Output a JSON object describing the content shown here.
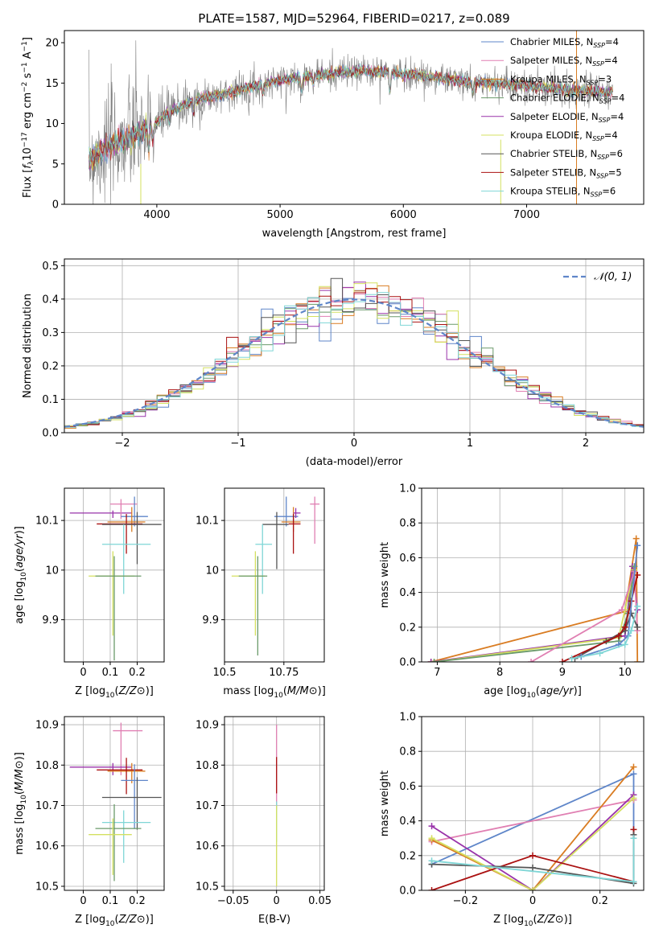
{
  "figure_title": "PLATE=1587, MJD=52964, FIBERID=0217, z=0.089",
  "colors": {
    "chabrier_miles": "#5f86c9",
    "salpeter_miles": "#e07fb2",
    "kroupa_miles": "#d97c22",
    "chabrier_elodie": "#6a9a6a",
    "salpeter_elodie": "#9933aa",
    "kroupa_elodie": "#d4e060",
    "chabrier_stelib": "#555555",
    "salpeter_stelib": "#aa1111",
    "kroupa_stelib": "#7fd6d6",
    "data": "#808080",
    "gauss": "#5f86c9"
  },
  "chart_data": [
    {
      "type": "line",
      "id": "spectrum",
      "title": "PLATE=1587, MJD=52964, FIBERID=0217, z=0.089",
      "xlabel": "wavelength [Angstrom, rest frame]",
      "ylabel": "Flux [fλ10⁻¹⁷ erg cm⁻² s⁻¹ A⁻¹]",
      "xlim": [
        3250,
        7950
      ],
      "ylim": [
        0,
        21.5
      ],
      "xticks": [
        4000,
        5000,
        6000,
        7000
      ],
      "yticks": [
        0,
        5,
        10,
        15,
        20
      ],
      "legend_position": "upper-right",
      "legend": [
        {
          "label": "Chabrier MILES, N",
          "sub": "SSP",
          "tail": "=4",
          "color_key": "chabrier_miles"
        },
        {
          "label": "Salpeter MILES, N",
          "sub": "SSP",
          "tail": "=4",
          "color_key": "salpeter_miles"
        },
        {
          "label": "Kroupa MILES, N",
          "sub": "SSP",
          "tail": "=3",
          "color_key": "kroupa_miles"
        },
        {
          "label": "Chabrier ELODIE, N",
          "sub": "SSP",
          "tail": "=4",
          "color_key": "chabrier_elodie"
        },
        {
          "label": "Salpeter ELODIE, N",
          "sub": "SSP",
          "tail": "=4",
          "color_key": "salpeter_elodie"
        },
        {
          "label": "Kroupa ELODIE, N",
          "sub": "SSP",
          "tail": "=4",
          "color_key": "kroupa_elodie"
        },
        {
          "label": "Chabrier STELIB, N",
          "sub": "SSP",
          "tail": "=6",
          "color_key": "chabrier_stelib"
        },
        {
          "label": "Salpeter STELIB, N",
          "sub": "SSP",
          "tail": "=5",
          "color_key": "salpeter_stelib"
        },
        {
          "label": "Kroupa STELIB, N",
          "sub": "SSP",
          "tail": "=6",
          "color_key": "kroupa_stelib"
        }
      ],
      "continuum": {
        "x": [
          3450,
          3600,
          3800,
          3950,
          4100,
          4300,
          4500,
          4700,
          4900,
          5100,
          5300,
          5500,
          5700,
          5900,
          6100,
          6300,
          6500,
          6700,
          6900,
          7100,
          7300,
          7500,
          7700
        ],
        "y": [
          5.5,
          7.0,
          8.5,
          9.5,
          11.5,
          12.8,
          13.5,
          14.3,
          15.0,
          15.6,
          16.0,
          16.3,
          16.5,
          16.3,
          16.0,
          15.6,
          15.2,
          15.0,
          14.8,
          14.5,
          14.2,
          14.0,
          13.8
        ]
      },
      "data_range": [
        3450,
        7700
      ],
      "vertical_lines": [
        {
          "x": 3870,
          "y0": 0,
          "y1": 5,
          "color_key": "kroupa_elodie"
        },
        {
          "x": 6790,
          "y0": 0,
          "y1": 8,
          "color_key": "kroupa_elodie"
        },
        {
          "x": 7405,
          "y0": 0,
          "y1": 21.5,
          "color_key": "kroupa_miles"
        }
      ]
    },
    {
      "type": "histogram",
      "id": "residuals",
      "xlabel": "(data-model)/error",
      "ylabel": "Normed distribution",
      "xlim": [
        -2.5,
        2.5
      ],
      "ylim": [
        0,
        0.52
      ],
      "xticks": [
        -2,
        -1,
        0,
        1,
        2
      ],
      "yticks": [
        0.0,
        0.1,
        0.2,
        0.3,
        0.4,
        0.5
      ],
      "bin_width": 0.1,
      "legend_position": "upper-right",
      "legend": [
        {
          "label": "𝒩(0, 1)",
          "color_key": "gauss",
          "style": "dashed"
        }
      ]
    },
    {
      "type": "errorbar",
      "id": "age_vs_Z",
      "xlabel": "Z [log10(Z/Z⊙)]",
      "ylabel": "age  [log10(age/yr)]",
      "xlim": [
        -0.07,
        0.3
      ],
      "ylim": [
        9.815,
        10.165
      ],
      "xticks": [
        0.0,
        0.1,
        0.2
      ],
      "yticks": [
        9.9,
        10.0,
        10.1
      ],
      "points": [
        {
          "color_key": "salpeter_elodie",
          "x": 0.11,
          "xerr": [
            0.16,
            0.07
          ],
          "y": 10.115,
          "yerr": [
            0.01,
            0.005
          ]
        },
        {
          "color_key": "salpeter_miles",
          "x": 0.14,
          "xerr": [
            0.04,
            0.06
          ],
          "y": 10.133,
          "yerr": [
            0.03,
            0.01
          ]
        },
        {
          "color_key": "chabrier_miles",
          "x": 0.19,
          "xerr": [
            0.05,
            0.05
          ],
          "y": 10.108,
          "yerr": [
            0.02,
            0.04
          ]
        },
        {
          "color_key": "kroupa_miles",
          "x": 0.18,
          "xerr": [
            0.09,
            0.05
          ],
          "y": 10.097,
          "yerr": [
            0.02,
            0.03
          ]
        },
        {
          "color_key": "salpeter_stelib",
          "x": 0.16,
          "xerr": [
            0.11,
            0.06
          ],
          "y": 10.093,
          "yerr": [
            0.06,
            0.02
          ]
        },
        {
          "color_key": "chabrier_stelib",
          "x": 0.2,
          "xerr": [
            0.13,
            0.09
          ],
          "y": 10.092,
          "yerr": [
            0.08,
            0.025
          ]
        },
        {
          "color_key": "kroupa_stelib",
          "x": 0.15,
          "xerr": [
            0.08,
            0.1
          ],
          "y": 10.052,
          "yerr": [
            0.1,
            0.04
          ]
        },
        {
          "color_key": "kroupa_elodie",
          "x": 0.11,
          "xerr": [
            0.09,
            0.08
          ],
          "y": 9.988,
          "yerr": [
            0.12,
            0.05
          ]
        },
        {
          "color_key": "chabrier_elodie",
          "x": 0.115,
          "xerr": [
            0.07,
            0.1
          ],
          "y": 9.988,
          "yerr": [
            0.17,
            0.04
          ]
        }
      ]
    },
    {
      "type": "errorbar",
      "id": "age_vs_mass",
      "xlabel": "mass [log10(M/M⊙)]",
      "ylabel": "",
      "xlim": [
        10.5,
        10.92
      ],
      "ylim": [
        9.815,
        10.165
      ],
      "xticks": [
        10.5,
        10.75
      ],
      "yticks": [
        9.9,
        10.0,
        10.1
      ],
      "points": [
        {
          "color_key": "salpeter_miles",
          "x": 10.88,
          "xerr": [
            0.02,
            0.02
          ],
          "y": 10.133,
          "yerr": [
            0.08,
            0.015
          ]
        },
        {
          "color_key": "chabrier_miles",
          "x": 10.76,
          "xerr": [
            0.05,
            0.05
          ],
          "y": 10.108,
          "yerr": [
            0.02,
            0.04
          ]
        },
        {
          "color_key": "kroupa_miles",
          "x": 10.79,
          "xerr": [
            0.05,
            0.03
          ],
          "y": 10.097,
          "yerr": [
            0.02,
            0.03
          ]
        },
        {
          "color_key": "salpeter_stelib",
          "x": 10.79,
          "xerr": [
            0.02,
            0.03
          ],
          "y": 10.093,
          "yerr": [
            0.06,
            0.02
          ]
        },
        {
          "color_key": "chabrier_stelib",
          "x": 10.72,
          "xerr": [
            0.06,
            0.05
          ],
          "y": 10.092,
          "yerr": [
            0.09,
            0.025
          ]
        },
        {
          "color_key": "salpeter_elodie",
          "x": 10.8,
          "xerr": [
            0.01,
            0.02
          ],
          "y": 10.115,
          "yerr": [
            0.01,
            0.01
          ]
        },
        {
          "color_key": "kroupa_stelib",
          "x": 10.66,
          "xerr": [
            0.03,
            0.04
          ],
          "y": 10.052,
          "yerr": [
            0.1,
            0.04
          ]
        },
        {
          "color_key": "kroupa_elodie",
          "x": 10.63,
          "xerr": [
            0.1,
            0.04
          ],
          "y": 9.988,
          "yerr": [
            0.12,
            0.05
          ]
        },
        {
          "color_key": "chabrier_elodie",
          "x": 10.64,
          "xerr": [
            0.08,
            0.04
          ],
          "y": 9.988,
          "yerr": [
            0.16,
            0.04
          ]
        }
      ]
    },
    {
      "type": "line",
      "id": "weight_vs_age",
      "xlabel": "age  [log10(age/yr)]",
      "ylabel": "mass weight",
      "xlim": [
        6.75,
        10.3
      ],
      "ylim": [
        0,
        1.0
      ],
      "xticks": [
        7,
        8,
        9,
        10
      ],
      "yticks": [
        0.0,
        0.2,
        0.4,
        0.6,
        0.8,
        1.0
      ],
      "series": [
        {
          "color_key": "kroupa_miles",
          "x": [
            6.9,
            10.0,
            10.18,
            10.2
          ],
          "y": [
            0.0,
            0.29,
            0.71,
            0.0
          ]
        },
        {
          "color_key": "salpeter_elodie",
          "x": [
            6.9,
            10.0,
            10.12,
            10.2
          ],
          "y": [
            0.0,
            0.15,
            0.55,
            0.3
          ]
        },
        {
          "color_key": "kroupa_elodie",
          "x": [
            6.95,
            9.9,
            10.0,
            10.15
          ],
          "y": [
            0.0,
            0.14,
            0.3,
            0.53
          ]
        },
        {
          "color_key": "chabrier_elodie",
          "x": [
            6.95,
            9.9,
            10.05,
            10.15
          ],
          "y": [
            0.0,
            0.12,
            0.28,
            0.55
          ]
        },
        {
          "color_key": "salpeter_miles",
          "x": [
            8.5,
            9.95,
            10.15,
            10.2
          ],
          "y": [
            0.0,
            0.3,
            0.52,
            0.18
          ]
        },
        {
          "color_key": "chabrier_stelib",
          "x": [
            9.2,
            9.7,
            10.0,
            10.1,
            10.2
          ],
          "y": [
            0.02,
            0.12,
            0.18,
            0.28,
            0.2
          ]
        },
        {
          "color_key": "salpeter_stelib",
          "x": [
            9.0,
            9.9,
            10.0,
            10.1,
            10.2
          ],
          "y": [
            0.0,
            0.15,
            0.2,
            0.35,
            0.5
          ]
        },
        {
          "color_key": "chabrier_miles",
          "x": [
            9.3,
            9.9,
            10.05,
            10.2
          ],
          "y": [
            0.03,
            0.1,
            0.15,
            0.67
          ]
        },
        {
          "color_key": "kroupa_stelib",
          "x": [
            9.15,
            9.6,
            10.0,
            10.1,
            10.2
          ],
          "y": [
            0.02,
            0.05,
            0.1,
            0.18,
            0.32
          ]
        }
      ]
    },
    {
      "type": "errorbar",
      "id": "mass_vs_Z",
      "xlabel": "Z [log10(Z/Z⊙)]",
      "ylabel": "mass [log10(M/M⊙)]",
      "xlim": [
        -0.07,
        0.3
      ],
      "ylim": [
        10.49,
        10.92
      ],
      "xticks": [
        0.0,
        0.1,
        0.2
      ],
      "yticks": [
        10.5,
        10.6,
        10.7,
        10.8,
        10.9
      ],
      "points": [
        {
          "color_key": "salpeter_miles",
          "x": 0.14,
          "xerr": [
            0.03,
            0.08
          ],
          "y": 10.885,
          "yerr": [
            0.11,
            0.02
          ]
        },
        {
          "color_key": "salpeter_elodie",
          "x": 0.11,
          "xerr": [
            0.16,
            0.07
          ],
          "y": 10.795,
          "yerr": [
            0.02,
            0.01
          ]
        },
        {
          "color_key": "kroupa_miles",
          "x": 0.18,
          "xerr": [
            0.09,
            0.05
          ],
          "y": 10.785,
          "yerr": [
            0.03,
            0.02
          ]
        },
        {
          "color_key": "salpeter_stelib",
          "x": 0.16,
          "xerr": [
            0.11,
            0.06
          ],
          "y": 10.788,
          "yerr": [
            0.06,
            0.03
          ]
        },
        {
          "color_key": "chabrier_miles",
          "x": 0.19,
          "xerr": [
            0.05,
            0.05
          ],
          "y": 10.762,
          "yerr": [
            0.12,
            0.04
          ]
        },
        {
          "color_key": "chabrier_stelib",
          "x": 0.2,
          "xerr": [
            0.13,
            0.09
          ],
          "y": 10.72,
          "yerr": [
            0.08,
            0.05
          ]
        },
        {
          "color_key": "kroupa_stelib",
          "x": 0.15,
          "xerr": [
            0.08,
            0.1
          ],
          "y": 10.658,
          "yerr": [
            0.1,
            0.03
          ]
        },
        {
          "color_key": "chabrier_elodie",
          "x": 0.115,
          "xerr": [
            0.07,
            0.1
          ],
          "y": 10.643,
          "yerr": [
            0.13,
            0.06
          ]
        },
        {
          "color_key": "kroupa_elodie",
          "x": 0.11,
          "xerr": [
            0.09,
            0.07
          ],
          "y": 10.628,
          "yerr": [
            0.1,
            0.04
          ]
        }
      ]
    },
    {
      "type": "errorbar",
      "id": "mass_vs_ebv",
      "xlabel": "E(B-V)",
      "ylabel": "",
      "xlim": [
        -0.06,
        0.055
      ],
      "ylim": [
        10.49,
        10.92
      ],
      "xticks": [
        -0.05,
        0.0,
        0.05
      ],
      "yticks": [
        10.5,
        10.6,
        10.7,
        10.8,
        10.9
      ],
      "points": [
        {
          "color_key": "salpeter_miles",
          "x": 0.0,
          "xerr": [
            0.0,
            0.0
          ],
          "y": 10.8,
          "yerr": [
            0.11,
            0.1
          ]
        },
        {
          "color_key": "salpeter_stelib",
          "x": 0.0,
          "xerr": [
            0.0,
            0.0
          ],
          "y": 10.78,
          "yerr": [
            0.05,
            0.04
          ]
        },
        {
          "color_key": "kroupa_stelib",
          "x": 0.0,
          "xerr": [
            0.0,
            0.0
          ],
          "y": 10.66,
          "yerr": [
            0.05,
            0.05
          ]
        },
        {
          "color_key": "kroupa_elodie",
          "x": 0.0,
          "xerr": [
            0.0,
            0.0
          ],
          "y": 10.6,
          "yerr": [
            0.1,
            0.1
          ]
        }
      ]
    },
    {
      "type": "line",
      "id": "weight_vs_Z",
      "xlabel": "Z [log10(Z/Z⊙)]",
      "ylabel": "mass weight",
      "xlim": [
        -0.33,
        0.33
      ],
      "ylim": [
        0,
        1.0
      ],
      "xticks": [
        -0.2,
        0.0,
        0.2
      ],
      "yticks": [
        0.0,
        0.2,
        0.4,
        0.6,
        0.8,
        1.0
      ],
      "series": [
        {
          "color_key": "chabrier_miles",
          "x": [
            -0.3,
            0.3,
            0.3
          ],
          "y": [
            0.15,
            0.67,
            0.05
          ]
        },
        {
          "color_key": "salpeter_miles",
          "x": [
            -0.3,
            0.3
          ],
          "y": [
            0.28,
            0.52
          ]
        },
        {
          "color_key": "kroupa_miles",
          "x": [
            -0.3,
            0.0,
            0.3
          ],
          "y": [
            0.29,
            0.0,
            0.71
          ]
        },
        {
          "color_key": "salpeter_elodie",
          "x": [
            -0.3,
            0.0,
            0.3
          ],
          "y": [
            0.37,
            0.0,
            0.55
          ]
        },
        {
          "color_key": "kroupa_elodie",
          "x": [
            -0.3,
            0.0,
            0.3
          ],
          "y": [
            0.3,
            0.0,
            0.53
          ]
        },
        {
          "color_key": "salpeter_stelib",
          "x": [
            -0.3,
            0.0,
            0.3,
            0.3
          ],
          "y": [
            0.0,
            0.2,
            0.05,
            0.35
          ]
        },
        {
          "color_key": "chabrier_stelib",
          "x": [
            -0.3,
            0.0,
            0.3,
            0.3
          ],
          "y": [
            0.15,
            0.13,
            0.04,
            0.32
          ]
        },
        {
          "color_key": "kroupa_stelib",
          "x": [
            -0.3,
            0.3,
            0.3
          ],
          "y": [
            0.17,
            0.05,
            0.3
          ]
        }
      ]
    }
  ]
}
